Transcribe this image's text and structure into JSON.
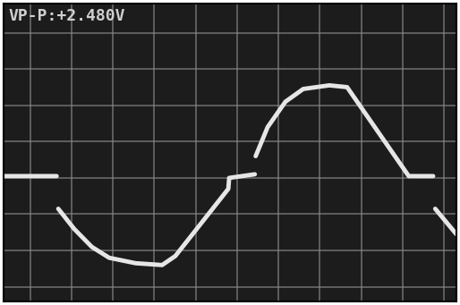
{
  "chart_data": {
    "type": "line",
    "annotations": [
      "VP-P:+2.480V"
    ],
    "x": [
      -0.64,
      0.64,
      0.66,
      0.68,
      1.06,
      1.49,
      1.91,
      2.55,
      3.19,
      3.51,
      4.79,
      4.81,
      5.43,
      5.44,
      5.45,
      5.74,
      6.17,
      6.6,
      7.23,
      7.66,
      9.15,
      9.74,
      9.76,
      9.79,
      10.3
    ],
    "series": [
      {
        "color": "#e6e6e6",
        "values": [
          0.05,
          0.05,
          null,
          -0.85,
          -1.4,
          -1.9,
          -2.2,
          -2.35,
          -2.4,
          -2.15,
          -0.3,
          0.0,
          0.1,
          null,
          0.6,
          1.4,
          2.1,
          2.45,
          2.55,
          2.5,
          0.05,
          0.05,
          null,
          -0.85,
          -1.55
        ]
      }
    ],
    "xlim": [
      -0.64,
      10.3
    ],
    "ylim": [
      -3.4,
      4.8
    ],
    "xticks": [
      0,
      1,
      2,
      3,
      4,
      5,
      6,
      7,
      8,
      9,
      10
    ],
    "yticks": [
      -3,
      -2,
      -1,
      0,
      1,
      2,
      3,
      4
    ],
    "grid": true,
    "tick_labels": false
  }
}
